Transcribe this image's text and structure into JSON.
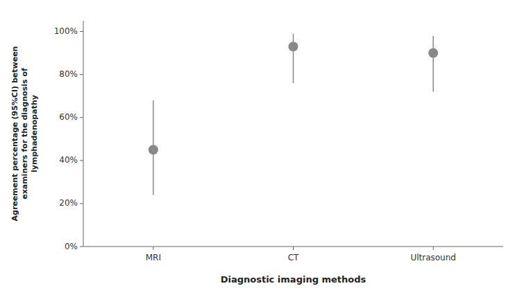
{
  "chart_data": {
    "type": "errorbar",
    "categories": [
      "MRI",
      "CT",
      "Ultrasound"
    ],
    "values": [
      0.45,
      0.93,
      0.9
    ],
    "ci_lower": [
      0.24,
      0.76,
      0.72
    ],
    "ci_upper": [
      0.68,
      0.99,
      0.98
    ],
    "xlabel": "Diagnostic imaging methods",
    "ylabel": "Agreement percentage (95%CI) between\nexaminers for the diagnosis of\nlymphadenopathy",
    "ylim": [
      0,
      1.05
    ],
    "yticks": [
      {
        "value": 0.0,
        "label": "0%"
      },
      {
        "value": 0.2,
        "label": "20%"
      },
      {
        "value": 0.4,
        "label": "40%"
      },
      {
        "value": 0.6,
        "label": "60%"
      },
      {
        "value": 0.8,
        "label": "80%"
      },
      {
        "value": 1.0,
        "label": "100%"
      }
    ],
    "color": "#888888",
    "grid": false
  }
}
